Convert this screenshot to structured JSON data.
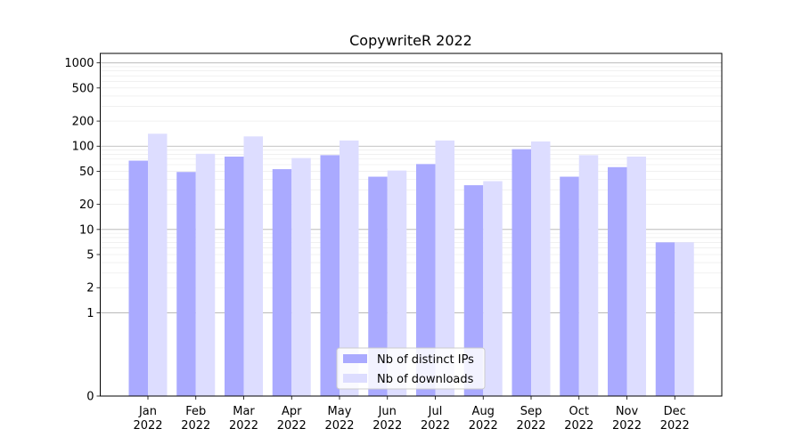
{
  "chart_data": {
    "type": "bar",
    "title": "CopywriteR 2022",
    "xlabel": "",
    "ylabel": "",
    "yscale": "symlog",
    "ylim": [
      0,
      1300
    ],
    "grid": true,
    "legend_position": "bottom-center",
    "categories": [
      [
        "Jan",
        "2022"
      ],
      [
        "Feb",
        "2022"
      ],
      [
        "Mar",
        "2022"
      ],
      [
        "Apr",
        "2022"
      ],
      [
        "May",
        "2022"
      ],
      [
        "Jun",
        "2022"
      ],
      [
        "Jul",
        "2022"
      ],
      [
        "Aug",
        "2022"
      ],
      [
        "Sep",
        "2022"
      ],
      [
        "Oct",
        "2022"
      ],
      [
        "Nov",
        "2022"
      ],
      [
        "Dec",
        "2022"
      ]
    ],
    "yticks": [
      0,
      1,
      2,
      5,
      10,
      20,
      50,
      100,
      200,
      500,
      1000
    ],
    "series": [
      {
        "name": "Nb of distinct IPs",
        "color": "#aaaaff",
        "values": [
          67,
          49,
          75,
          53,
          78,
          43,
          61,
          34,
          92,
          43,
          56,
          7
        ]
      },
      {
        "name": "Nb of downloads",
        "color": "#ddddff",
        "values": [
          141,
          81,
          131,
          72,
          117,
          51,
          117,
          38,
          114,
          78,
          75,
          7
        ]
      }
    ]
  }
}
